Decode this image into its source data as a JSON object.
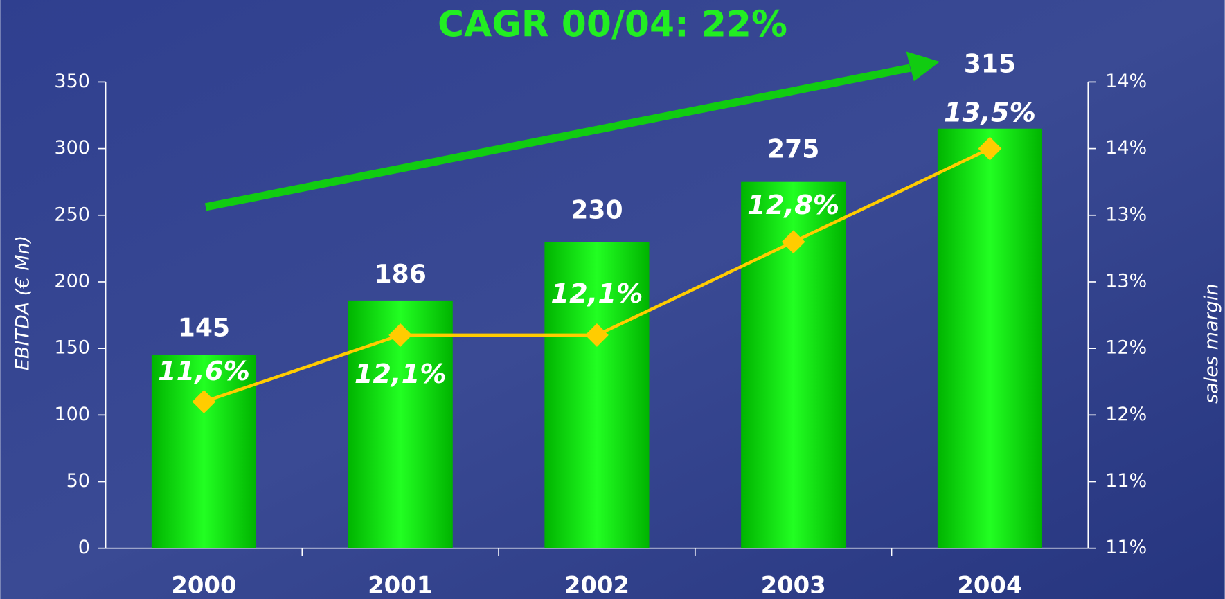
{
  "chart_data": {
    "type": "bar",
    "title": "CAGR 00/04: 22%",
    "y_label": "EBITDA (€ Mn)",
    "y2_label": "sales margin",
    "categories": [
      "2000",
      "2001",
      "2002",
      "2003",
      "2004"
    ],
    "series": [
      {
        "type": "bar",
        "color": "#00e000",
        "values": [
          145,
          186,
          230,
          275,
          315
        ]
      },
      {
        "type": "line",
        "axis": "y2",
        "color": "#ffcc00",
        "values": [
          11.6,
          12.1,
          12.1,
          12.8,
          13.5
        ],
        "value_labels": [
          "11,6%",
          "12,1%",
          "12,1%",
          "12,8%",
          "13,5%"
        ]
      }
    ],
    "ylim": [
      0,
      350
    ],
    "yticks": [
      0,
      50,
      100,
      150,
      200,
      250,
      300,
      350
    ],
    "y2lim": [
      10.5,
      14.0
    ],
    "y2ticks": [
      {
        "value": 10.5,
        "label": "11%"
      },
      {
        "value": 11.0,
        "label": "11%"
      },
      {
        "value": 11.5,
        "label": "12%"
      },
      {
        "value": 12.0,
        "label": "12%"
      },
      {
        "value": 12.5,
        "label": "13%"
      },
      {
        "value": 13.0,
        "label": "13%"
      },
      {
        "value": 13.5,
        "label": "14%"
      },
      {
        "value": 14.0,
        "label": "14%"
      }
    ]
  }
}
